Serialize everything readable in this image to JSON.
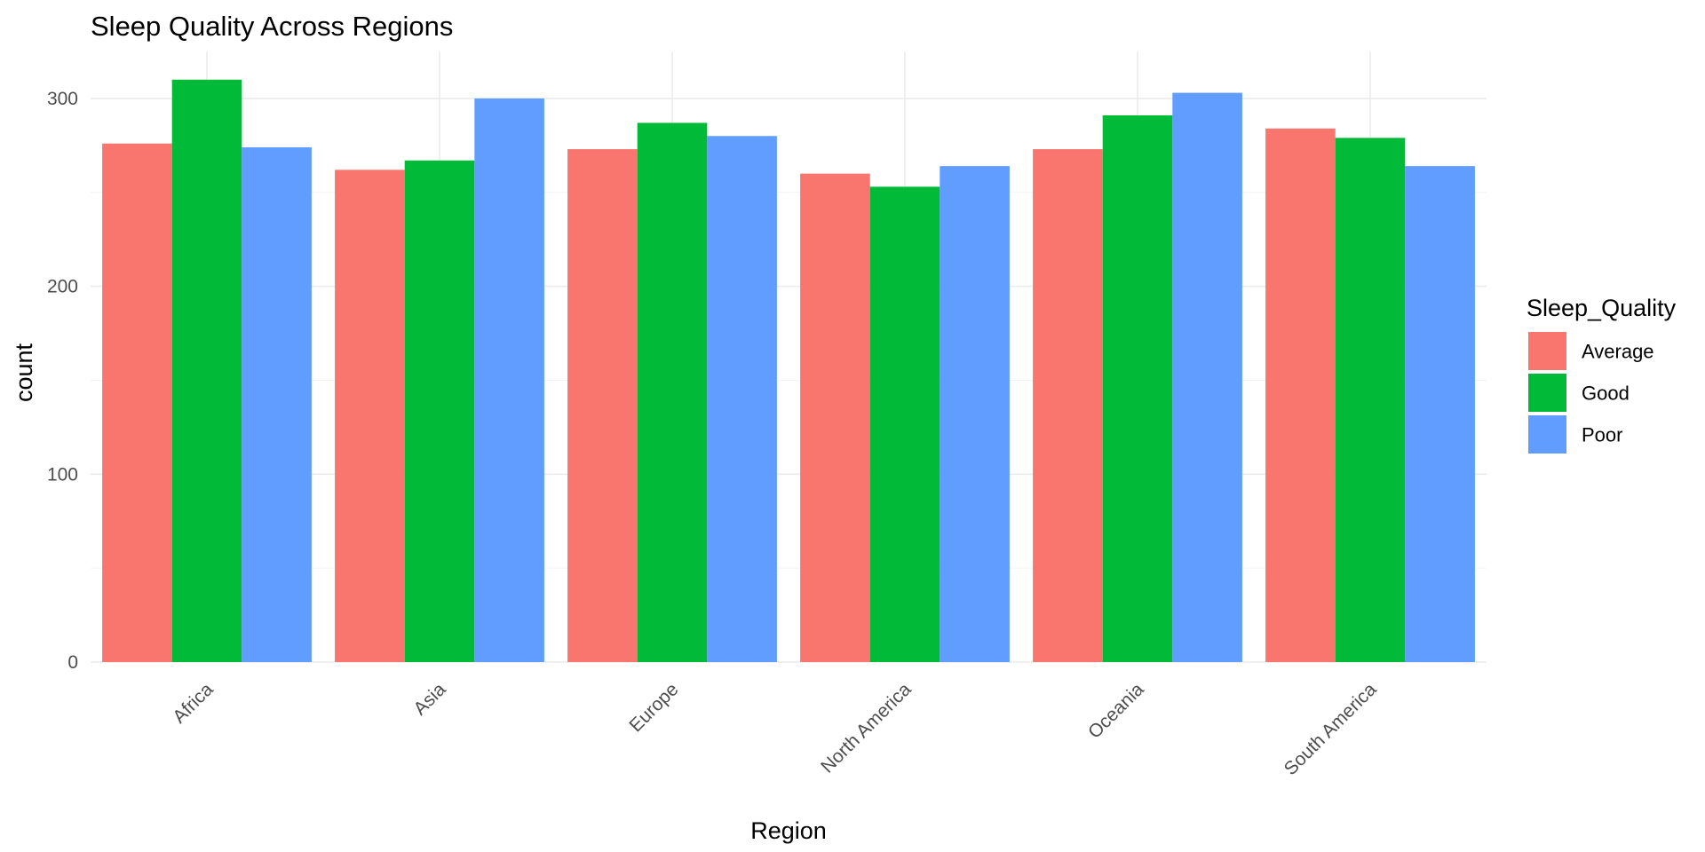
{
  "chart_data": {
    "type": "bar",
    "title": "Sleep Quality Across Regions",
    "xlabel": "Region",
    "ylabel": "count",
    "categories": [
      "Africa",
      "Asia",
      "Europe",
      "North America",
      "Oceania",
      "South America"
    ],
    "series": [
      {
        "name": "Average",
        "color": "#F8766D",
        "values": [
          276,
          262,
          273,
          260,
          273,
          284
        ]
      },
      {
        "name": "Good",
        "color": "#00BA38",
        "values": [
          310,
          267,
          287,
          253,
          291,
          279
        ]
      },
      {
        "name": "Poor",
        "color": "#619CFF",
        "values": [
          274,
          300,
          280,
          264,
          303,
          264
        ]
      }
    ],
    "ylim": [
      0,
      325
    ],
    "yticks": [
      0,
      100,
      200,
      300
    ],
    "grid": true,
    "legend": {
      "title": "Sleep_Quality",
      "position": "right"
    }
  }
}
